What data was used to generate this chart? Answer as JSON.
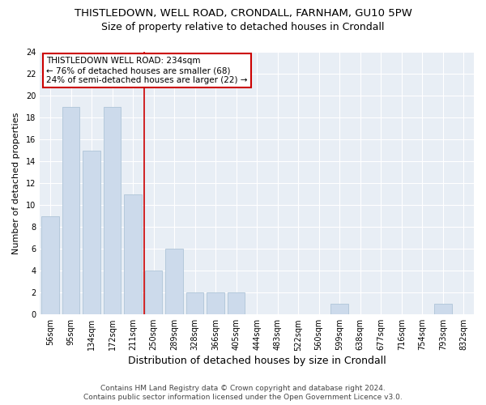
{
  "title1": "THISTLEDOWN, WELL ROAD, CRONDALL, FARNHAM, GU10 5PW",
  "title2": "Size of property relative to detached houses in Crondall",
  "xlabel": "Distribution of detached houses by size in Crondall",
  "ylabel": "Number of detached properties",
  "categories": [
    "56sqm",
    "95sqm",
    "134sqm",
    "172sqm",
    "211sqm",
    "250sqm",
    "289sqm",
    "328sqm",
    "366sqm",
    "405sqm",
    "444sqm",
    "483sqm",
    "522sqm",
    "560sqm",
    "599sqm",
    "638sqm",
    "677sqm",
    "716sqm",
    "754sqm",
    "793sqm",
    "832sqm"
  ],
  "values": [
    9,
    19,
    15,
    19,
    11,
    4,
    6,
    2,
    2,
    2,
    0,
    0,
    0,
    0,
    1,
    0,
    0,
    0,
    0,
    1,
    0
  ],
  "bar_color": "#ccdaeb",
  "bar_edge_color": "#aec4d8",
  "ax_bg_color": "#e8eef5",
  "grid_color": "#ffffff",
  "fig_bg_color": "#ffffff",
  "vline_color": "#cc0000",
  "vline_x_idx": 4.55,
  "annotation_line1": "THISTLEDOWN WELL ROAD: 234sqm",
  "annotation_line2": "← 76% of detached houses are smaller (68)",
  "annotation_line3": "24% of semi-detached houses are larger (22) →",
  "annotation_box_color": "#ffffff",
  "annotation_edge_color": "#cc0000",
  "ylim": [
    0,
    24
  ],
  "yticks": [
    0,
    2,
    4,
    6,
    8,
    10,
    12,
    14,
    16,
    18,
    20,
    22,
    24
  ],
  "footer1": "Contains HM Land Registry data © Crown copyright and database right 2024.",
  "footer2": "Contains public sector information licensed under the Open Government Licence v3.0.",
  "title1_fontsize": 9.5,
  "title2_fontsize": 9,
  "xlabel_fontsize": 9,
  "ylabel_fontsize": 8,
  "tick_fontsize": 7,
  "footer_fontsize": 6.5,
  "annot_fontsize": 7.5
}
